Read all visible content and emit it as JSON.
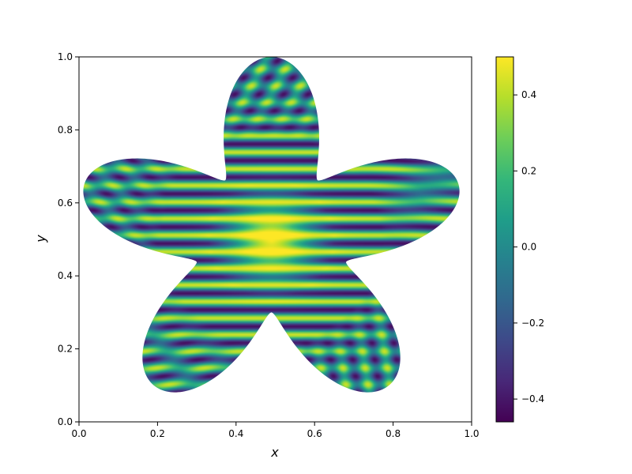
{
  "chart_data": {
    "type": "heatmap",
    "title": "",
    "xlabel": "x",
    "ylabel": "y",
    "xlim": [
      0.0,
      1.0
    ],
    "ylim": [
      0.0,
      1.0
    ],
    "xticks": [
      "0.0",
      "0.2",
      "0.4",
      "0.6",
      "0.8",
      "1.0"
    ],
    "yticks": [
      "0.0",
      "0.2",
      "0.4",
      "0.6",
      "0.8",
      "1.0"
    ],
    "grid": false,
    "colormap": "viridis",
    "colorbar": {
      "min": -0.46,
      "max": 0.5,
      "ticks": [
        "0.4",
        "0.2",
        "0.0",
        "−0.2",
        "−0.4"
      ],
      "tick_values": [
        0.4,
        0.2,
        0.0,
        -0.2,
        -0.4
      ]
    },
    "domain_shape": "five-petal flower",
    "domain_center": [
      0.49,
      0.5
    ],
    "field_description": "field ≈ 0.5 at centre (0.49, 0.5), decaying outward with oscillating stripes of amplitude ≈ 0.45 across the petals",
    "peak_value": 0.5,
    "stripe_amplitude": 0.45
  },
  "colors": {
    "viridis": [
      "#440154",
      "#482878",
      "#3e4989",
      "#31688e",
      "#26828e",
      "#1f9e89",
      "#35b779",
      "#6ece58",
      "#b5de2b",
      "#fde725"
    ]
  }
}
